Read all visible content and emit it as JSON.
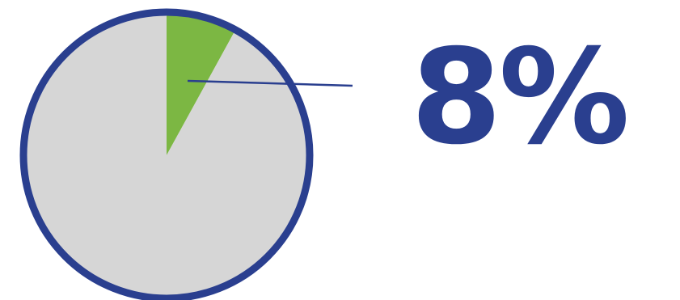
{
  "chart_data": {
    "type": "pie",
    "slices": [
      {
        "value": 8,
        "color": "#7cb743"
      },
      {
        "value": 92,
        "color": "#d6d6d6"
      }
    ],
    "highlight_label": "8%",
    "outline_color": "#2a3f8f",
    "leader_color": "#2a3f8f"
  }
}
